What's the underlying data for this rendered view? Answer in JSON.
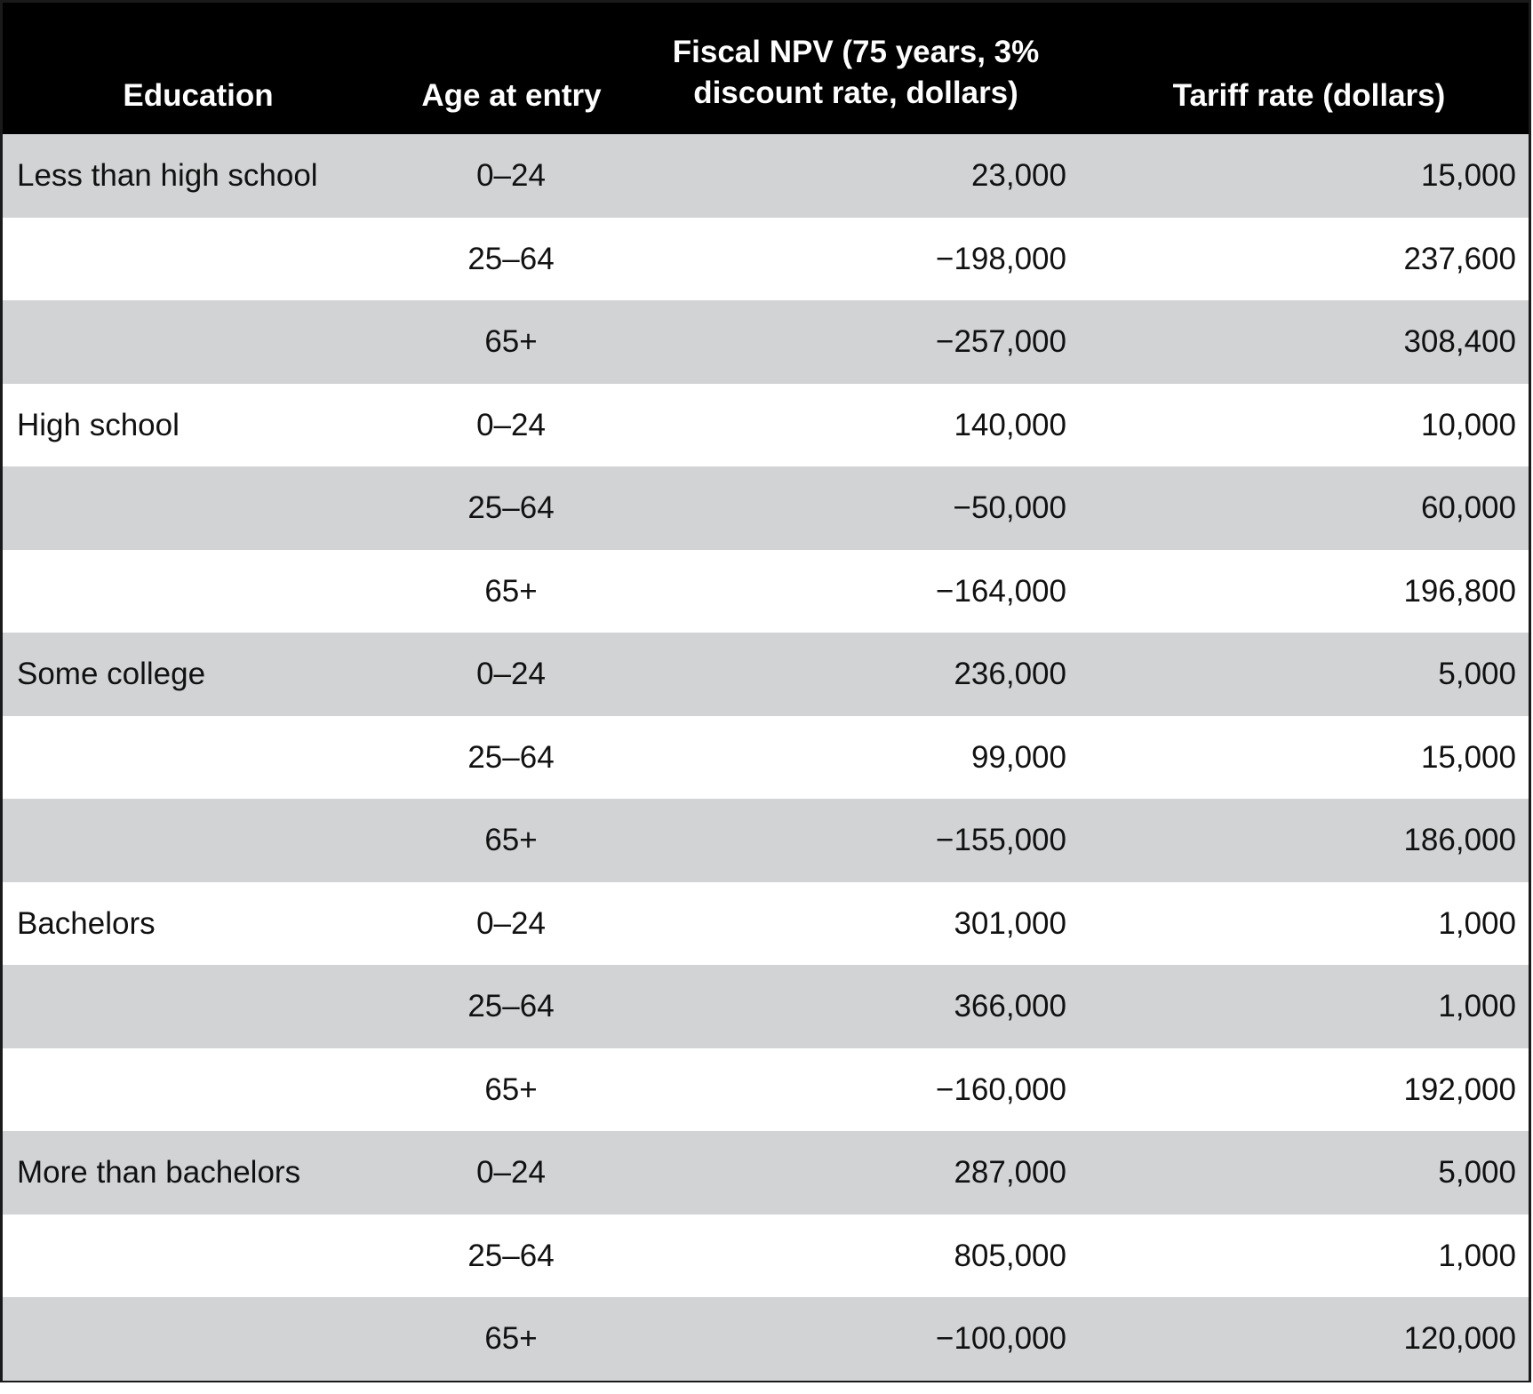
{
  "headers": {
    "education": "Education",
    "age": "Age at entry",
    "npv": "Fiscal NPV (75 years, 3% discount rate, dollars)",
    "npv_line1": "Fiscal NPV (75 years, 3%",
    "npv_line2": "discount rate, dollars)",
    "tariff": "Tariff rate (dollars)"
  },
  "rows": [
    {
      "education": "Less than high school",
      "age": "0–24",
      "npv": "23,000",
      "tariff": "15,000"
    },
    {
      "education": "",
      "age": "25–64",
      "npv": "−198,000",
      "tariff": "237,600"
    },
    {
      "education": "",
      "age": "65+",
      "npv": "−257,000",
      "tariff": "308,400"
    },
    {
      "education": "High school",
      "age": "0–24",
      "npv": "140,000",
      "tariff": "10,000"
    },
    {
      "education": "",
      "age": "25–64",
      "npv": "−50,000",
      "tariff": "60,000"
    },
    {
      "education": "",
      "age": "65+",
      "npv": "−164,000",
      "tariff": "196,800"
    },
    {
      "education": "Some college",
      "age": "0–24",
      "npv": "236,000",
      "tariff": "5,000"
    },
    {
      "education": "",
      "age": "25–64",
      "npv": "99,000",
      "tariff": "15,000"
    },
    {
      "education": "",
      "age": "65+",
      "npv": "−155,000",
      "tariff": "186,000"
    },
    {
      "education": "Bachelors",
      "age": "0–24",
      "npv": "301,000",
      "tariff": "1,000"
    },
    {
      "education": "",
      "age": "25–64",
      "npv": "366,000",
      "tariff": "1,000"
    },
    {
      "education": "",
      "age": "65+",
      "npv": "−160,000",
      "tariff": "192,000"
    },
    {
      "education": "More than bachelors",
      "age": "0–24",
      "npv": "287,000",
      "tariff": "5,000"
    },
    {
      "education": "",
      "age": "25–64",
      "npv": "805,000",
      "tariff": "1,000"
    },
    {
      "education": "",
      "age": "65+",
      "npv": "−100,000",
      "tariff": "120,000"
    }
  ],
  "colors": {
    "header_bg": "#000000",
    "header_text": "#ffffff",
    "shade_row": "#d1d3d5"
  }
}
